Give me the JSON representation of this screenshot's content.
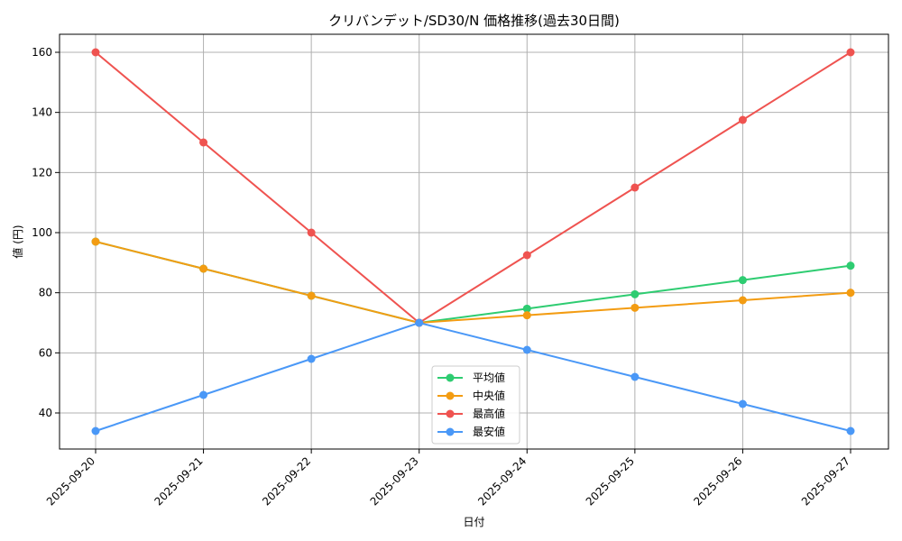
{
  "chart_data": {
    "type": "line",
    "title": "クリバンデット/SD30/N 価格推移(過去30日間)",
    "xlabel": "日付",
    "ylabel": "値 (円)",
    "categories": [
      "2025-09-20",
      "2025-09-21",
      "2025-09-22",
      "2025-09-23",
      "2025-09-24",
      "2025-09-25",
      "2025-09-26",
      "2025-09-27"
    ],
    "ylim": [
      28,
      166
    ],
    "yticks": [
      40,
      60,
      80,
      100,
      120,
      140,
      160
    ],
    "grid": true,
    "legend_position": "lower-center",
    "series": [
      {
        "name": "平均値",
        "color": "#2ecc71",
        "values": [
          97,
          88,
          79,
          70,
          74.7,
          79.5,
          84.2,
          89
        ]
      },
      {
        "name": "中央値",
        "color": "#f39c12",
        "values": [
          97,
          88,
          79,
          70,
          72.5,
          75,
          77.5,
          80
        ]
      },
      {
        "name": "最高値",
        "color": "#ef5350",
        "values": [
          160,
          130,
          100,
          70,
          92.5,
          115,
          137.5,
          160
        ]
      },
      {
        "name": "最安値",
        "color": "#4a98f7",
        "values": [
          34,
          46,
          58,
          70,
          61,
          52,
          43,
          34
        ]
      }
    ]
  }
}
